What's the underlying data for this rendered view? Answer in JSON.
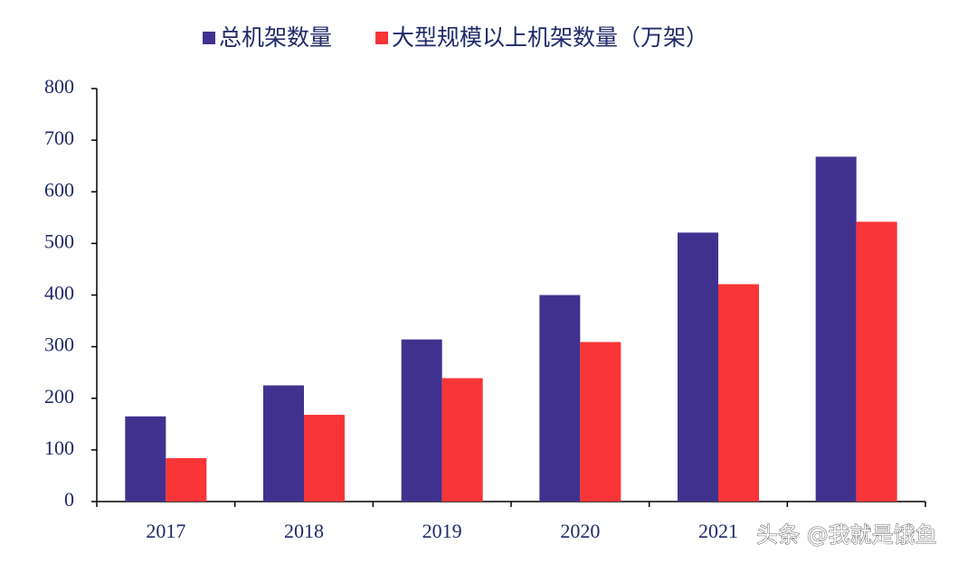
{
  "chart_data": {
    "type": "bar",
    "categories": [
      "2017",
      "2018",
      "2019",
      "2020",
      "2021",
      null
    ],
    "series": [
      {
        "name": "总机架数量",
        "color": "#41318f",
        "values": [
          165,
          225,
          314,
          400,
          521,
          668
        ]
      },
      {
        "name": "大型规模以上机架数量（万架）",
        "color": "#f93537",
        "values": [
          84,
          168,
          239,
          309,
          421,
          542
        ]
      }
    ],
    "ylim": [
      0,
      800
    ],
    "yticks": [
      0,
      100,
      200,
      300,
      400,
      500,
      600,
      700,
      800
    ],
    "grid": false,
    "legend": "top",
    "watermark": "头条 @我就是饿鱼"
  }
}
